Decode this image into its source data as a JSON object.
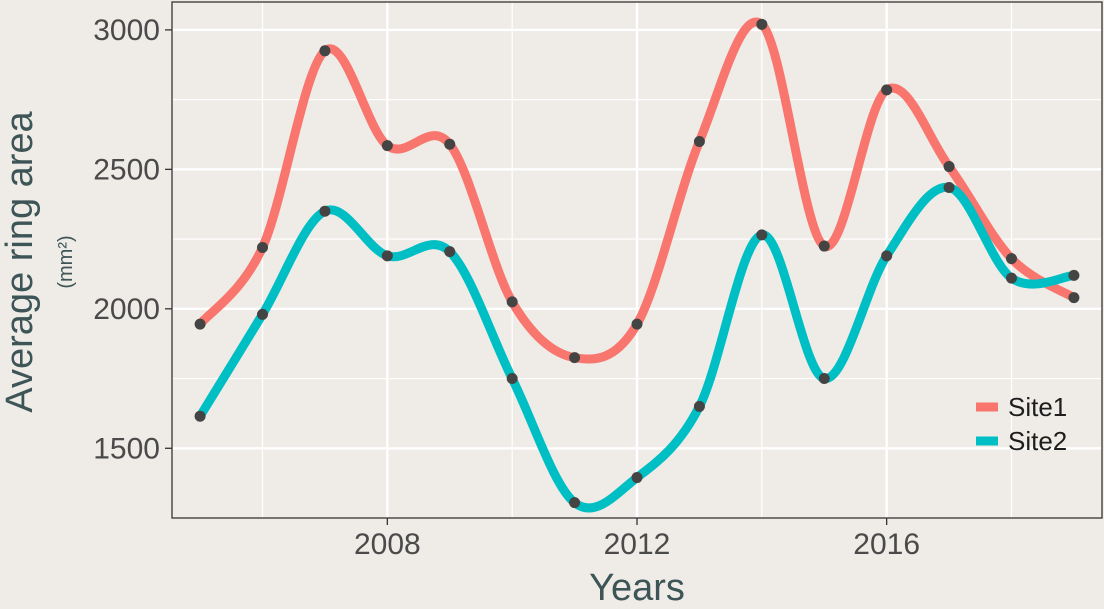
{
  "chart_data": {
    "type": "line",
    "title": "",
    "xlabel": "Years",
    "ylabel": "Average ring area",
    "ylabel_unit": "(mm²)",
    "xlim": [
      2004.55,
      2019.45
    ],
    "ylim": [
      1250,
      3100
    ],
    "x_ticks": [
      2008,
      2012,
      2016
    ],
    "y_ticks": [
      1500,
      2000,
      2500,
      3000
    ],
    "grid": true,
    "legend_position": "right",
    "x": [
      2005,
      2006,
      2007,
      2008,
      2009,
      2010,
      2011,
      2012,
      2013,
      2014,
      2015,
      2016,
      2017,
      2018,
      2019
    ],
    "series": [
      {
        "name": "Site1",
        "color": "#f8766d",
        "values": [
          1945,
          2220,
          2925,
          2585,
          2590,
          2025,
          1825,
          1945,
          2600,
          3020,
          2225,
          2785,
          2510,
          2180,
          2040
        ]
      },
      {
        "name": "Site2",
        "color": "#00bfc4",
        "values": [
          1615,
          1980,
          2350,
          2190,
          2205,
          1750,
          1305,
          1395,
          1650,
          2265,
          1750,
          2190,
          2435,
          2110,
          2120
        ]
      }
    ],
    "point_color": "#444444",
    "background": "#efece7",
    "grid_color": "#ffffff",
    "axis_title_color": "#3d5556"
  }
}
